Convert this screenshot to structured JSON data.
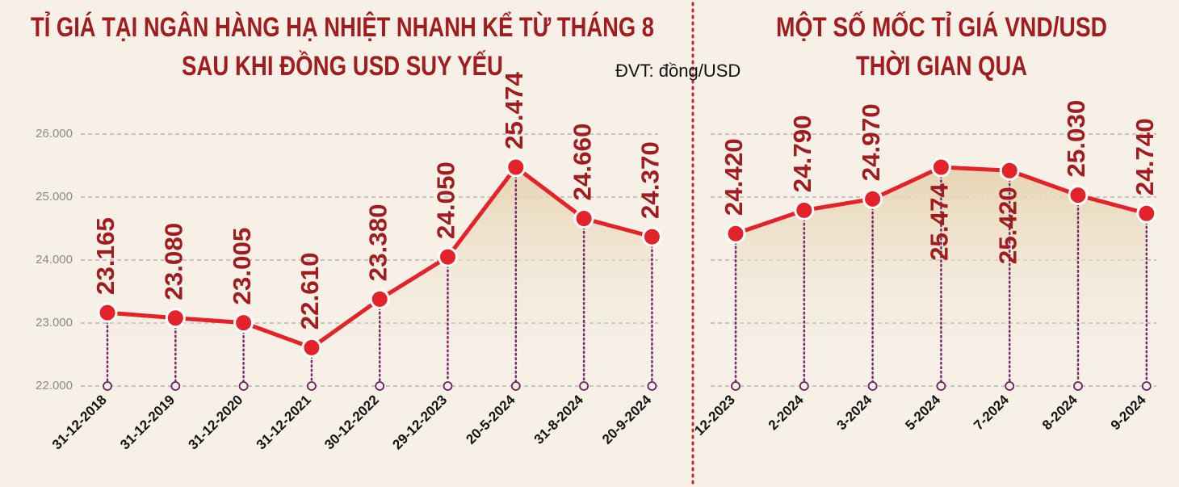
{
  "chart_data": [
    {
      "type": "line",
      "title": [
        "TỈ GIÁ TẠI NGÂN HÀNG HẠ NHIỆT NHANH KỂ TỪ THÁNG 8",
        "SAU KHI ĐỒNG USD SUY YẾU"
      ],
      "unit_label": "ĐVT: đồng/USD",
      "categories": [
        "31-12-2018",
        "31-12-2019",
        "31-12-2020",
        "31-12-2021",
        "30-12-2022",
        "29-12-2023",
        "20-5-2024",
        "31-8-2024",
        "20-9-2024"
      ],
      "values": [
        23165,
        23080,
        23005,
        22610,
        23380,
        24050,
        25474,
        24660,
        24370
      ],
      "value_labels": [
        "23.165",
        "23.080",
        "23.005",
        "22.610",
        "23.380",
        "24.050",
        "25.474",
        "24.660",
        "24.370"
      ],
      "color": "#e3222a",
      "ylim": [
        22000,
        26000
      ],
      "yticks": [
        {
          "value": 22000,
          "label": "22.000"
        },
        {
          "value": 23000,
          "label": "23.000"
        },
        {
          "value": 24000,
          "label": "24.000"
        },
        {
          "value": 25000,
          "label": "25.000"
        },
        {
          "value": 26000,
          "label": "26.000"
        }
      ],
      "grid": true
    },
    {
      "type": "line",
      "title": [
        "MỘT SỐ MỐC TỈ GIÁ VND/USD",
        "THỜI GIAN QUA"
      ],
      "categories": [
        "12-2023",
        "2-2024",
        "3-2024",
        "5-2024",
        "7-2024",
        "8-2024",
        "9-2024"
      ],
      "values": [
        24420,
        24790,
        24970,
        25474,
        25420,
        25030,
        24740
      ],
      "value_labels": [
        "24.420",
        "24.790",
        "24.970",
        "25.474",
        "25.420",
        "25.030",
        "24.740"
      ],
      "color": "#e3222a",
      "ylim": [
        22000,
        26000
      ],
      "yticks": [
        22000,
        23000,
        24000,
        25000,
        26000
      ],
      "grid": true
    }
  ]
}
